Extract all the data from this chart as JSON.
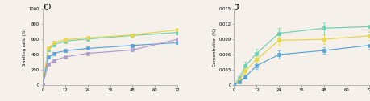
{
  "fig_bg": "#f5f0ea",
  "left": {
    "title": "(가)",
    "ylabel": "Swelling ratio (%)",
    "xlim": [
      0,
      72
    ],
    "ylim": [
      0,
      1000
    ],
    "xticks": [
      0,
      12,
      24,
      36,
      48,
      60,
      72
    ],
    "yticks": [
      0,
      200,
      400,
      600,
      800,
      1000
    ],
    "x": [
      0,
      3,
      6,
      12,
      24,
      48,
      72
    ],
    "series": [
      {
        "y": [
          0,
          460,
          530,
          575,
          605,
          650,
          690
        ],
        "yerr": [
          0,
          18,
          22,
          18,
          15,
          20,
          22
        ],
        "color": "#6ecfb2",
        "marker": "s"
      },
      {
        "y": [
          0,
          480,
          555,
          595,
          620,
          658,
          725
        ],
        "yerr": [
          0,
          22,
          28,
          22,
          20,
          18,
          22
        ],
        "color": "#e8d44d",
        "marker": "s"
      },
      {
        "y": [
          0,
          365,
          415,
          450,
          480,
          520,
          555
        ],
        "yerr": [
          0,
          15,
          12,
          15,
          12,
          15,
          18
        ],
        "color": "#5ba3d5",
        "marker": "s"
      },
      {
        "y": [
          0,
          270,
          320,
          370,
          415,
          460,
          600
        ],
        "yerr": [
          0,
          18,
          15,
          12,
          12,
          18,
          20
        ],
        "color": "#b09ccc",
        "marker": "s"
      }
    ]
  },
  "right": {
    "title": "나)",
    "ylabel": "Concentration (%)",
    "xlim": [
      0,
      72
    ],
    "ylim": [
      0,
      0.015
    ],
    "xticks": [
      0,
      12,
      24,
      36,
      48,
      60,
      72
    ],
    "yticks": [
      0,
      0.003,
      0.006,
      0.009,
      0.012,
      0.015
    ],
    "ytick_labels": [
      "0",
      "0.003",
      "0.006",
      "0.009",
      "0.012",
      "0.015"
    ],
    "x": [
      0,
      3,
      6,
      12,
      24,
      48,
      72
    ],
    "series": [
      {
        "y": [
          0,
          0.0014,
          0.0038,
          0.0062,
          0.0102,
          0.0112,
          0.0115
        ],
        "yerr": [
          0,
          0.0004,
          0.0007,
          0.0009,
          0.0011,
          0.0012,
          0.001
        ],
        "color": "#6ecfb2",
        "marker": "s"
      },
      {
        "y": [
          0,
          0.001,
          0.0028,
          0.005,
          0.0088,
          0.009,
          0.0097
        ],
        "yerr": [
          0,
          0.0003,
          0.0006,
          0.0007,
          0.001,
          0.001,
          0.0009
        ],
        "color": "#e8d44d",
        "marker": "s"
      },
      {
        "y": [
          0,
          0.0006,
          0.0016,
          0.0038,
          0.006,
          0.0068,
          0.0078
        ],
        "yerr": [
          0,
          0.0002,
          0.0004,
          0.0006,
          0.0008,
          0.0007,
          0.0007
        ],
        "color": "#5ba3d5",
        "marker": "s"
      }
    ]
  }
}
